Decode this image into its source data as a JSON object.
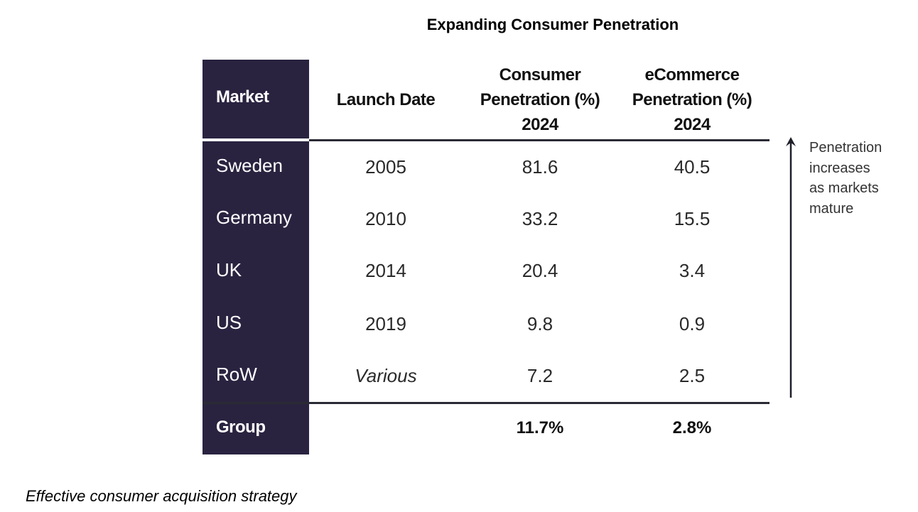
{
  "title": "Expanding Consumer Penetration",
  "table": {
    "headers": {
      "market": "Market",
      "launch_date": "Launch Date",
      "consumer": [
        "Consumer",
        "Penetration (%)",
        "2024"
      ],
      "ecommerce": [
        "eCommerce",
        "Penetration (%)",
        "2024"
      ]
    },
    "rows": [
      {
        "market": "Sweden",
        "launch": "2005",
        "consumer": "81.6",
        "ecommerce": "40.5"
      },
      {
        "market": "Germany",
        "launch": "2010",
        "consumer": "33.2",
        "ecommerce": "15.5"
      },
      {
        "market": "UK",
        "launch": "2014",
        "consumer": "20.4",
        "ecommerce": "3.4"
      },
      {
        "market": "US",
        "launch": "2019",
        "consumer": "9.8",
        "ecommerce": "0.9"
      },
      {
        "market": "RoW",
        "launch": "Various",
        "consumer": "7.2",
        "ecommerce": "2.5"
      }
    ],
    "total": {
      "market": "Group",
      "consumer": "11.7%",
      "ecommerce": "2.8%"
    }
  },
  "annotation": [
    "Penetration",
    "increases",
    "as markets",
    "mature"
  ],
  "footer": "Effective consumer acquisition strategy",
  "colors": {
    "market_column": "#2a2340"
  }
}
